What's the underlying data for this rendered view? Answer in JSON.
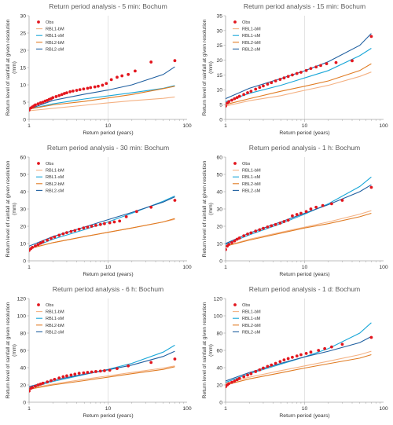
{
  "series_style": {
    "Obs": {
      "color": "#e3161e",
      "kind": "marker"
    },
    "RBL1-bM": {
      "color": "#f4b183",
      "kind": "line"
    },
    "RBL1-sM": {
      "color": "#1aa7d8",
      "kind": "line"
    },
    "RBL2-bM": {
      "color": "#e07b22",
      "kind": "line"
    },
    "RBL2-sM": {
      "color": "#1f5fa0",
      "kind": "line"
    }
  },
  "chart_data": [
    {
      "type": "scatter",
      "title": "Return period analysis - 5 min: Bochum",
      "xlabel": "Return period (years)",
      "ylabel": "Return level of rainfall at given resolution (mm)",
      "xscale": "log",
      "xlim": [
        1,
        100
      ],
      "ylim": [
        0,
        30
      ],
      "xticks": [
        1,
        10,
        100
      ],
      "yticks": [
        0,
        5,
        10,
        15,
        20,
        25,
        30
      ],
      "grid": "vertical-major",
      "legend": "top-left",
      "series": [
        {
          "name": "Obs",
          "x": [
            1.0,
            1.05,
            1.1,
            1.15,
            1.2,
            1.3,
            1.4,
            1.5,
            1.6,
            1.7,
            1.8,
            1.9,
            2.0,
            2.2,
            2.4,
            2.6,
            2.8,
            3.0,
            3.3,
            3.6,
            4.0,
            4.4,
            4.9,
            5.5,
            6.0,
            6.8,
            7.5,
            8.5,
            9.5,
            11,
            13,
            15,
            18,
            22,
            35,
            70
          ],
          "y": [
            2.7,
            3.3,
            3.6,
            3.9,
            4.2,
            4.5,
            4.8,
            5.0,
            5.3,
            5.5,
            5.8,
            6.0,
            6.3,
            6.6,
            6.9,
            7.2,
            7.5,
            7.7,
            8.0,
            8.2,
            8.4,
            8.6,
            8.8,
            9.0,
            9.2,
            9.4,
            9.6,
            9.9,
            10.4,
            11.5,
            12.2,
            12.6,
            13.0,
            14.0,
            16.6,
            17.0
          ]
        },
        {
          "name": "RBL1-bM",
          "x": [
            1,
            2,
            5,
            10,
            20,
            50,
            70
          ],
          "y": [
            2.5,
            3.2,
            4.1,
            4.8,
            5.4,
            6.1,
            6.5
          ]
        },
        {
          "name": "RBL1-sM",
          "x": [
            1,
            2,
            5,
            10,
            20,
            50,
            70
          ],
          "y": [
            3.0,
            4.5,
            5.9,
            6.8,
            7.7,
            9.0,
            9.8
          ]
        },
        {
          "name": "RBL2-bM",
          "x": [
            1,
            2,
            5,
            10,
            20,
            50,
            70
          ],
          "y": [
            3.0,
            4.2,
            5.2,
            6.2,
            7.2,
            8.9,
            9.6
          ]
        },
        {
          "name": "RBL2-sM",
          "x": [
            1,
            2,
            5,
            10,
            20,
            50,
            70
          ],
          "y": [
            3.0,
            5.5,
            7.3,
            8.5,
            10.0,
            13.0,
            15.2
          ]
        }
      ]
    },
    {
      "type": "scatter",
      "title": "Return period analysis - 15 min: Bochum",
      "xlabel": "Return period (years)",
      "ylabel": "Return level of rainfall at given resolution (mm)",
      "xscale": "log",
      "xlim": [
        1,
        100
      ],
      "ylim": [
        0,
        35
      ],
      "xticks": [
        1,
        10,
        100
      ],
      "yticks": [
        0,
        5,
        10,
        15,
        20,
        25,
        30,
        35
      ],
      "grid": "vertical-major",
      "legend": "top-left",
      "series": [
        {
          "name": "Obs",
          "x": [
            1.0,
            1.05,
            1.1,
            1.2,
            1.3,
            1.4,
            1.5,
            1.7,
            1.9,
            2.1,
            2.4,
            2.7,
            3.0,
            3.4,
            3.8,
            4.3,
            4.9,
            5.5,
            6.2,
            7.0,
            8.0,
            9.0,
            10.5,
            12,
            14,
            16,
            19,
            25,
            40,
            70
          ],
          "y": [
            4.5,
            5.5,
            6.0,
            6.5,
            7.0,
            7.4,
            7.8,
            8.4,
            9.0,
            9.5,
            10.2,
            10.8,
            11.3,
            11.9,
            12.4,
            13.0,
            13.5,
            14.0,
            14.5,
            15.0,
            15.5,
            15.9,
            16.5,
            17.2,
            17.7,
            18.2,
            18.8,
            19.2,
            19.8,
            28.0
          ]
        },
        {
          "name": "RBL1-bM",
          "x": [
            1,
            2,
            5,
            10,
            20,
            50,
            70
          ],
          "y": [
            4.5,
            6.3,
            8.0,
            9.8,
            11.5,
            14.5,
            16.0
          ]
        },
        {
          "name": "RBL1-sM",
          "x": [
            1,
            2,
            5,
            10,
            20,
            50,
            70
          ],
          "y": [
            6.0,
            8.8,
            11.5,
            14.0,
            16.5,
            21.5,
            24.0
          ]
        },
        {
          "name": "RBL2-bM",
          "x": [
            1,
            2,
            5,
            10,
            20,
            50,
            70
          ],
          "y": [
            5.0,
            7.0,
            9.5,
            11.2,
            13.0,
            16.5,
            18.8
          ]
        },
        {
          "name": "RBL2-sM",
          "x": [
            1,
            2,
            5,
            10,
            20,
            50,
            70
          ],
          "y": [
            7.0,
            10.5,
            13.8,
            16.4,
            19.5,
            25.0,
            29.0
          ]
        }
      ]
    },
    {
      "type": "scatter",
      "title": "Return period analysis - 30 min: Bochum",
      "xlabel": "Return period (years)",
      "ylabel": "Return level of rainfall at given resolution (mm)",
      "xscale": "log",
      "xlim": [
        1,
        100
      ],
      "ylim": [
        0,
        60
      ],
      "xticks": [
        1,
        10,
        100
      ],
      "yticks": [
        0,
        10,
        20,
        30,
        40,
        50,
        60
      ],
      "grid": "vertical-major",
      "legend": "top-left",
      "series": [
        {
          "name": "Obs",
          "x": [
            1.0,
            1.05,
            1.1,
            1.2,
            1.3,
            1.4,
            1.5,
            1.7,
            1.9,
            2.1,
            2.4,
            2.7,
            3.0,
            3.4,
            3.8,
            4.3,
            4.9,
            5.5,
            6.2,
            7.0,
            8.0,
            9.0,
            10.5,
            12,
            14,
            17,
            23,
            35,
            70
          ],
          "y": [
            6.0,
            7.0,
            7.8,
            8.6,
            9.4,
            10.2,
            11.0,
            12.0,
            13.0,
            13.8,
            14.8,
            15.6,
            16.3,
            17.0,
            17.5,
            18.3,
            19.0,
            19.5,
            20.0,
            20.5,
            21.0,
            21.5,
            22.0,
            22.5,
            23.0,
            25.5,
            28.5,
            31.0,
            35.0
          ]
        },
        {
          "name": "RBL1-bM",
          "x": [
            1,
            2,
            5,
            10,
            20,
            50,
            70
          ],
          "y": [
            7.0,
            10.5,
            14.0,
            16.5,
            19.0,
            22.5,
            24.0
          ]
        },
        {
          "name": "RBL1-sM",
          "x": [
            1,
            2,
            5,
            10,
            20,
            50,
            70
          ],
          "y": [
            7.0,
            12.5,
            18.0,
            22.5,
            27.5,
            34.5,
            37.5
          ]
        },
        {
          "name": "RBL2-bM",
          "x": [
            1,
            2,
            5,
            10,
            20,
            50,
            70
          ],
          "y": [
            7.0,
            10.5,
            14.0,
            16.5,
            19.0,
            22.5,
            24.5
          ]
        },
        {
          "name": "RBL2-sM",
          "x": [
            1,
            2,
            5,
            10,
            20,
            50,
            70
          ],
          "y": [
            8.5,
            14.0,
            19.5,
            23.8,
            28.0,
            34.0,
            37.0
          ]
        }
      ]
    },
    {
      "type": "scatter",
      "title": "Return period analysis - 1 h: Bochum",
      "xlabel": "Return period (years)",
      "ylabel": "Return level of rainfall at given resolution (mm)",
      "xscale": "log",
      "xlim": [
        1,
        100
      ],
      "ylim": [
        0,
        60
      ],
      "xticks": [
        1,
        10,
        100
      ],
      "yticks": [
        0,
        10,
        20,
        30,
        40,
        50,
        60
      ],
      "grid": "vertical-major",
      "legend": "top-left",
      "series": [
        {
          "name": "Obs",
          "x": [
            1.0,
            1.05,
            1.1,
            1.2,
            1.3,
            1.4,
            1.5,
            1.7,
            1.9,
            2.1,
            2.4,
            2.7,
            3.0,
            3.4,
            3.8,
            4.3,
            4.9,
            5.5,
            6.2,
            7.0,
            8.0,
            9.0,
            10.5,
            12,
            14,
            17,
            22,
            30,
            70
          ],
          "y": [
            6.5,
            8.5,
            9.5,
            10.5,
            11.5,
            12.5,
            13.2,
            14.5,
            15.5,
            16.2,
            17.2,
            18.0,
            18.8,
            19.6,
            20.3,
            21.0,
            21.8,
            22.7,
            23.5,
            26.0,
            26.8,
            27.5,
            28.5,
            30.0,
            31.0,
            32.0,
            33.0,
            35.0,
            42.5
          ]
        },
        {
          "name": "RBL1-bM",
          "x": [
            1,
            2,
            5,
            10,
            20,
            50,
            70
          ],
          "y": [
            8.5,
            12.5,
            16.5,
            19.5,
            22.5,
            27.0,
            29.0
          ]
        },
        {
          "name": "RBL1-sM",
          "x": [
            1,
            2,
            5,
            10,
            20,
            50,
            70
          ],
          "y": [
            9.5,
            15.0,
            21.5,
            27.0,
            33.0,
            43.0,
            48.5
          ]
        },
        {
          "name": "RBL2-bM",
          "x": [
            1,
            2,
            5,
            10,
            20,
            50,
            70
          ],
          "y": [
            8.5,
            12.0,
            16.0,
            19.0,
            21.5,
            25.5,
            27.5
          ]
        },
        {
          "name": "RBL2-sM",
          "x": [
            1,
            2,
            5,
            10,
            20,
            50,
            70
          ],
          "y": [
            10.0,
            16.0,
            22.5,
            27.5,
            32.5,
            40.0,
            44.0
          ]
        }
      ]
    },
    {
      "type": "scatter",
      "title": "Return period analysis - 6 h: Bochum",
      "xlabel": "Return period (years)",
      "ylabel": "Return level of rainfall at given resolution (mm)",
      "xscale": "log",
      "xlim": [
        1,
        100
      ],
      "ylim": [
        0,
        120
      ],
      "xticks": [
        1,
        10,
        100
      ],
      "yticks": [
        0,
        20,
        40,
        60,
        80,
        100,
        120
      ],
      "grid": "vertical-major",
      "legend": "top-left",
      "series": [
        {
          "name": "Obs",
          "x": [
            1.0,
            1.05,
            1.1,
            1.2,
            1.3,
            1.4,
            1.5,
            1.7,
            1.9,
            2.1,
            2.4,
            2.7,
            3.0,
            3.4,
            3.8,
            4.3,
            4.9,
            5.5,
            6.2,
            7.0,
            8.0,
            9.0,
            10.5,
            13,
            18,
            35,
            70
          ],
          "y": [
            13.0,
            16.0,
            17.0,
            18.5,
            20.0,
            21.0,
            22.0,
            23.5,
            25.0,
            26.5,
            28.0,
            29.5,
            30.5,
            31.5,
            32.5,
            33.5,
            34.0,
            34.5,
            35.0,
            35.5,
            36.0,
            36.5,
            37.0,
            39.0,
            42.0,
            46.0,
            50.0
          ]
        },
        {
          "name": "RBL1-bM",
          "x": [
            1,
            2,
            5,
            10,
            20,
            50,
            70
          ],
          "y": [
            16.0,
            21.0,
            26.5,
            30.5,
            34.5,
            39.5,
            42.0
          ]
        },
        {
          "name": "RBL1-sM",
          "x": [
            1,
            2,
            5,
            10,
            20,
            50,
            70
          ],
          "y": [
            16.0,
            24.0,
            32.0,
            38.0,
            45.0,
            58.0,
            66.0
          ]
        },
        {
          "name": "RBL2-bM",
          "x": [
            1,
            2,
            5,
            10,
            20,
            50,
            70
          ],
          "y": [
            15.0,
            20.0,
            25.0,
            29.0,
            33.0,
            38.0,
            41.0
          ]
        },
        {
          "name": "RBL2-sM",
          "x": [
            1,
            2,
            5,
            10,
            20,
            50,
            70
          ],
          "y": [
            18.0,
            25.5,
            32.5,
            37.5,
            43.0,
            53.0,
            59.0
          ]
        }
      ]
    },
    {
      "type": "scatter",
      "title": "Return period analysis - 1 d: Bochum",
      "xlabel": "Return period (years)",
      "ylabel": "Return level of rainfall at given resolution (mm)",
      "xscale": "log",
      "xlim": [
        1,
        100
      ],
      "ylim": [
        0,
        120
      ],
      "xticks": [
        1,
        10,
        100
      ],
      "yticks": [
        0,
        20,
        40,
        60,
        80,
        100,
        120
      ],
      "grid": "vertical-major",
      "legend": "top-left",
      "series": [
        {
          "name": "Obs",
          "x": [
            1.0,
            1.05,
            1.1,
            1.2,
            1.3,
            1.4,
            1.5,
            1.7,
            1.9,
            2.1,
            2.4,
            2.7,
            3.0,
            3.4,
            3.8,
            4.3,
            4.9,
            5.5,
            6.2,
            7.0,
            8.0,
            9.0,
            10.5,
            12,
            15,
            18,
            22,
            30,
            70
          ],
          "y": [
            18.0,
            20.0,
            21.5,
            23.0,
            24.5,
            26.0,
            27.5,
            29.5,
            31.5,
            33.0,
            35.5,
            37.5,
            39.5,
            41.5,
            43.0,
            45.0,
            47.0,
            49.0,
            50.5,
            52.0,
            53.5,
            55.0,
            56.5,
            58.0,
            60.0,
            62.0,
            64.0,
            67.0,
            75.0
          ]
        },
        {
          "name": "RBL1-bM",
          "x": [
            1,
            2,
            5,
            10,
            20,
            50,
            70
          ],
          "y": [
            22.0,
            29.0,
            36.5,
            42.0,
            47.5,
            55.0,
            59.0
          ]
        },
        {
          "name": "RBL1-sM",
          "x": [
            1,
            2,
            5,
            10,
            20,
            50,
            70
          ],
          "y": [
            23.0,
            33.0,
            44.0,
            52.5,
            62.0,
            80.0,
            92.0
          ]
        },
        {
          "name": "RBL2-bM",
          "x": [
            1,
            2,
            5,
            10,
            20,
            50,
            70
          ],
          "y": [
            20.0,
            27.0,
            34.0,
            39.5,
            44.5,
            51.0,
            55.0
          ]
        },
        {
          "name": "RBL2-sM",
          "x": [
            1,
            2,
            5,
            10,
            20,
            50,
            70
          ],
          "y": [
            24.5,
            34.5,
            45.0,
            52.5,
            59.0,
            69.0,
            76.0
          ]
        }
      ]
    }
  ]
}
